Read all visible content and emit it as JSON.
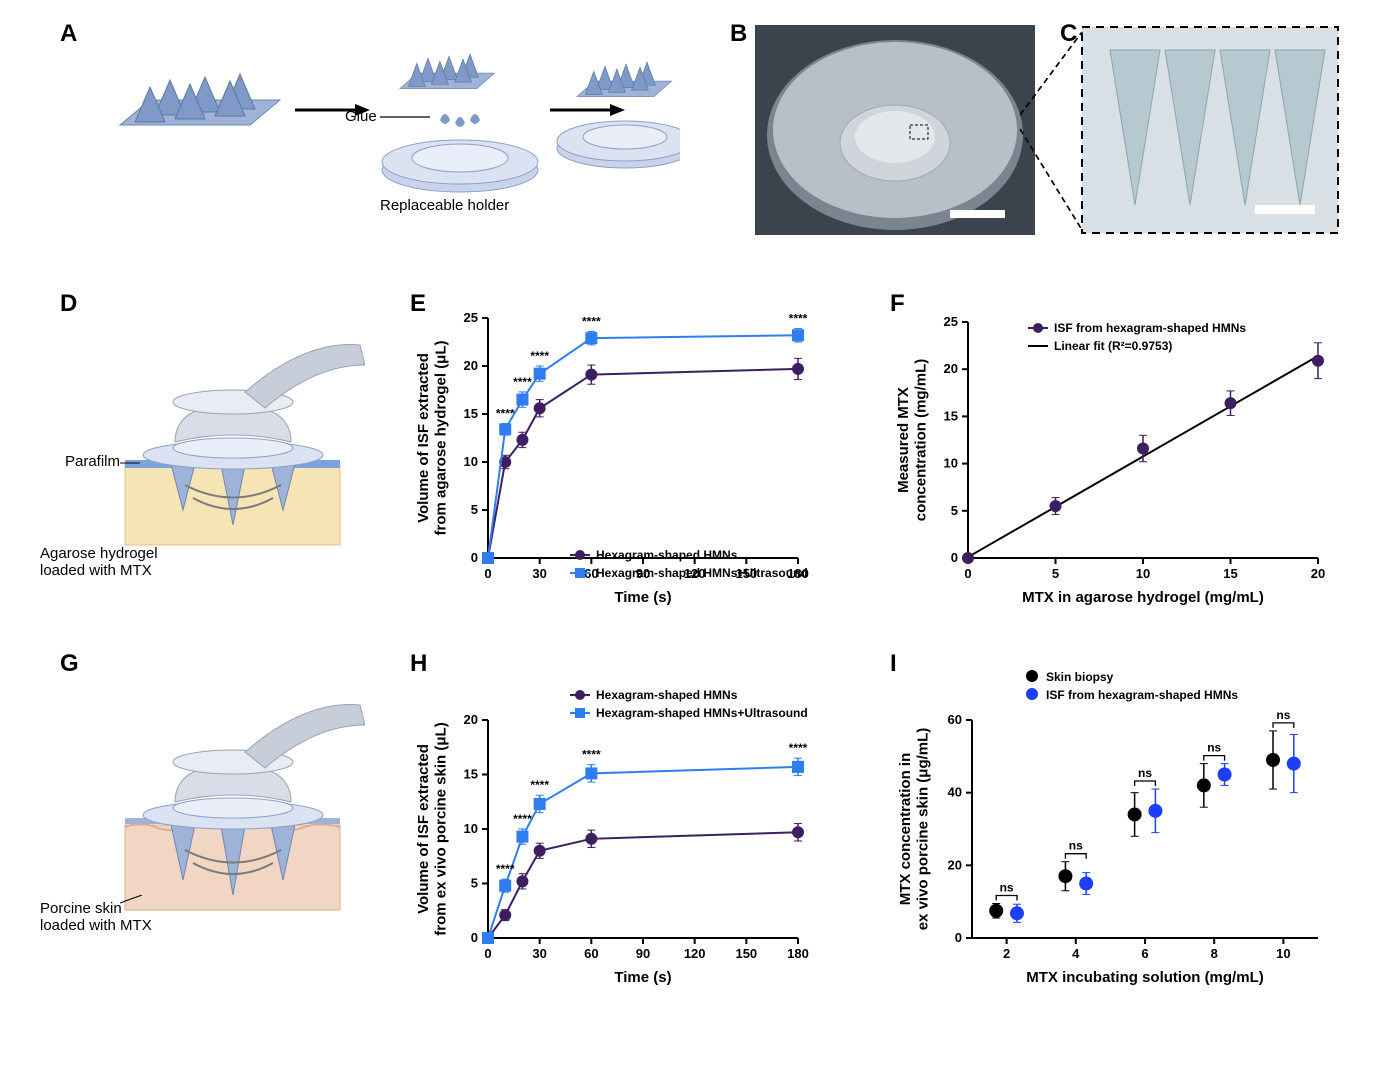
{
  "panels": {
    "A": {
      "label": "A",
      "glue_label": "Glue",
      "holder_label": "Replaceable holder"
    },
    "B": {
      "label": "B"
    },
    "C": {
      "label": "C"
    },
    "D": {
      "label": "D",
      "parafilm_label": "Parafilm",
      "substrate_label": "Agarose hydrogel\nloaded with MTX"
    },
    "E": {
      "label": "E",
      "type": "line",
      "xlabel": "Time (s)",
      "ylabel": "Volume of ISF extracted\nfrom agarose hydrogel (μL)",
      "xlim": [
        0,
        180
      ],
      "ylim": [
        0,
        25
      ],
      "xticks": [
        0,
        30,
        60,
        90,
        120,
        150,
        180
      ],
      "yticks": [
        0,
        5,
        10,
        15,
        20,
        25
      ],
      "series": [
        {
          "name": "Hexagram-shaped HMNs",
          "color": "#3d1e5e",
          "marker": "circle",
          "x": [
            0,
            10,
            20,
            30,
            60,
            180
          ],
          "y": [
            0,
            10.0,
            12.3,
            15.6,
            19.1,
            19.7
          ],
          "err": [
            0,
            0.7,
            0.8,
            0.9,
            1.0,
            1.1
          ]
        },
        {
          "name": "Hexagram-shaped HMNs+Ultrasound",
          "color": "#2f7ef0",
          "marker": "square",
          "x": [
            0,
            10,
            20,
            30,
            60,
            180
          ],
          "y": [
            0,
            13.4,
            16.5,
            19.2,
            22.9,
            23.2
          ],
          "err": [
            0,
            0.6,
            0.8,
            0.8,
            0.7,
            0.7
          ]
        }
      ],
      "sig": [
        {
          "x": 10,
          "label": "****"
        },
        {
          "x": 20,
          "label": "****"
        },
        {
          "x": 30,
          "label": "****"
        },
        {
          "x": 60,
          "label": "****"
        },
        {
          "x": 180,
          "label": "****"
        }
      ],
      "background": "#ffffff",
      "axis_color": "#000000",
      "linewidth": 2,
      "marker_size": 6,
      "label_fontsize": 15,
      "tick_fontsize": 13,
      "legend_fontsize": 13
    },
    "F": {
      "label": "F",
      "type": "scatter-line",
      "xlabel": "MTX in agarose hydrogel (mg/mL)",
      "ylabel": "Measured MTX\nconcentration (mg/mL)",
      "xlim": [
        0,
        20
      ],
      "ylim": [
        0,
        25
      ],
      "xticks": [
        0,
        5,
        10,
        15,
        20
      ],
      "yticks": [
        0,
        5,
        10,
        15,
        20,
        25
      ],
      "points": {
        "color": "#3d1e5e",
        "marker": "circle",
        "x": [
          0,
          5,
          10,
          15,
          20
        ],
        "y": [
          0,
          5.5,
          11.6,
          16.4,
          20.9
        ],
        "err": [
          0,
          0.9,
          1.4,
          1.3,
          1.9
        ]
      },
      "fit": {
        "color": "#000000",
        "slope": 1.065,
        "intercept": 0.1,
        "r2_text": "Linear fit (R²=0.9753)"
      },
      "legend_series_label": "ISF from hexagram-shaped HMNs",
      "background": "#ffffff",
      "axis_color": "#000000",
      "linewidth": 2,
      "marker_size": 6
    },
    "G": {
      "label": "G",
      "substrate_label": "Porcine skin\nloaded with MTX"
    },
    "H": {
      "label": "H",
      "type": "line",
      "xlabel": "Time (s)",
      "ylabel": "Volume of ISF extracted\nfrom ex vivo porcine skin (μL)",
      "xlim": [
        0,
        180
      ],
      "ylim": [
        0,
        20
      ],
      "xticks": [
        0,
        30,
        60,
        90,
        120,
        150,
        180
      ],
      "yticks": [
        0,
        5,
        10,
        15,
        20
      ],
      "series": [
        {
          "name": "Hexagram-shaped HMNs",
          "color": "#3d1e5e",
          "marker": "circle",
          "x": [
            0,
            10,
            20,
            30,
            60,
            180
          ],
          "y": [
            0,
            2.1,
            5.2,
            8.0,
            9.1,
            9.7
          ],
          "err": [
            0,
            0.5,
            0.7,
            0.7,
            0.8,
            0.8
          ]
        },
        {
          "name": "Hexagram-shaped HMNs+Ultrasound",
          "color": "#2f7ef0",
          "marker": "square",
          "x": [
            0,
            10,
            20,
            30,
            60,
            180
          ],
          "y": [
            0,
            4.8,
            9.3,
            12.3,
            15.1,
            15.7
          ],
          "err": [
            0,
            0.6,
            0.7,
            0.8,
            0.8,
            0.8
          ]
        }
      ],
      "sig": [
        {
          "x": 10,
          "label": "****"
        },
        {
          "x": 20,
          "label": "****"
        },
        {
          "x": 30,
          "label": "****"
        },
        {
          "x": 60,
          "label": "****"
        },
        {
          "x": 180,
          "label": "****"
        }
      ],
      "background": "#ffffff",
      "axis_color": "#000000",
      "linewidth": 2,
      "marker_size": 6
    },
    "I": {
      "label": "I",
      "type": "scatter-pairs",
      "xlabel": "MTX incubating solution (mg/mL)",
      "ylabel": "MTX concentration in\nex vivo porcine skin (μg/mL)",
      "categories": [
        2,
        4,
        6,
        8,
        10
      ],
      "ylim": [
        0,
        60
      ],
      "yticks": [
        0,
        20,
        40,
        60
      ],
      "series": [
        {
          "name": "Skin biopsy",
          "color": "#000000",
          "marker": "circle",
          "offset": -0.15,
          "y": [
            7.5,
            17,
            34,
            42,
            49
          ],
          "err": [
            2,
            4,
            6,
            6,
            8
          ]
        },
        {
          "name": "ISF from hexagram-shaped HMNs",
          "color": "#1c3fff",
          "marker": "circle",
          "offset": 0.15,
          "y": [
            6.8,
            15,
            35,
            45,
            48
          ],
          "err": [
            2.5,
            3,
            6,
            3,
            8
          ]
        }
      ],
      "sig_label": "ns",
      "background": "#ffffff",
      "axis_color": "#000000",
      "marker_size": 7
    }
  },
  "colors": {
    "needle": "#9fb3d9",
    "holder": "#c9d3ea",
    "arrow": "#000000",
    "skin_yellow": "#f6e4b5",
    "skin_pink": "#f2d6c4",
    "parafilm": "#7aa4db",
    "probe_light": "#d8dde7",
    "probe_dark": "#b7bfd0",
    "photo_bg": "#6b7884",
    "photo_ring": "#d0d4d8",
    "photo_inner": "#c7ccd1"
  }
}
